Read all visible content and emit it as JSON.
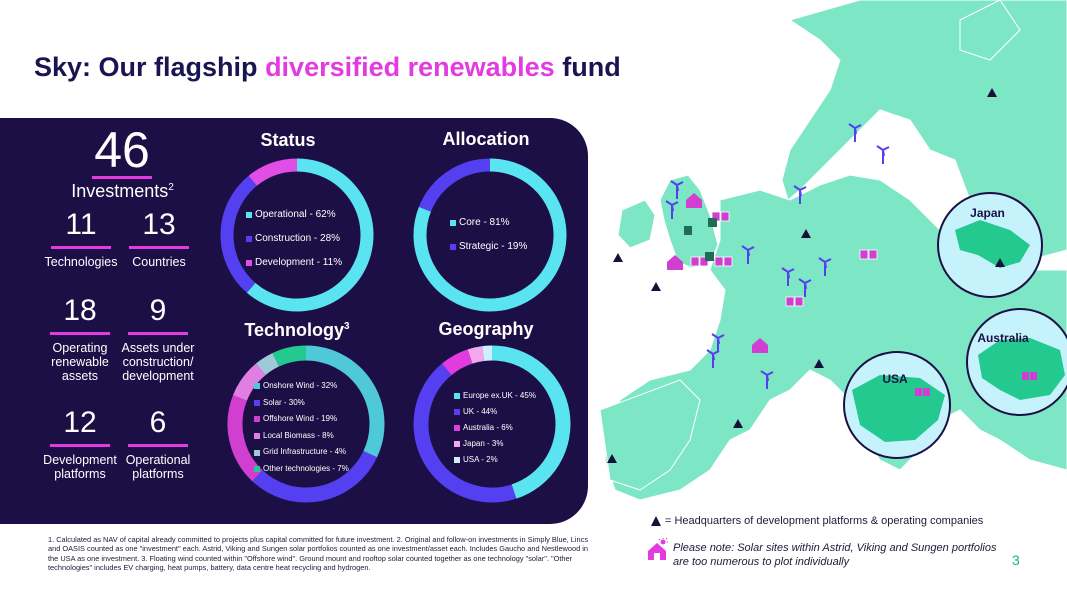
{
  "title": {
    "prefix": "Sky: Our flagship",
    "accent": "diversified renewables",
    "suffix": "fund"
  },
  "stats": {
    "investments": {
      "value": "46",
      "label": "Investments",
      "sup": "2"
    },
    "technologies": {
      "value": "11",
      "label": "Technologies"
    },
    "countries": {
      "value": "13",
      "label": "Countries"
    },
    "operating": {
      "value": "18",
      "label_lines": [
        "Operating",
        "renewable",
        "assets"
      ]
    },
    "under_construction": {
      "value": "9",
      "label_lines": [
        "Assets under",
        "construction/",
        "development"
      ]
    },
    "development_platforms": {
      "value": "12",
      "label_lines": [
        "Development",
        "platforms"
      ]
    },
    "operational_platforms": {
      "value": "6",
      "label_lines": [
        "Operational",
        "platforms"
      ]
    }
  },
  "chart_data": [
    {
      "type": "pie",
      "title": "Status",
      "categories": [
        "Operational",
        "Construction",
        "Development"
      ],
      "values": [
        62,
        28,
        11
      ],
      "labels": [
        "Operational - 62%",
        "Construction - 28%",
        "Development - 11%"
      ],
      "colors": [
        "#5ae3f0",
        "#5440f0",
        "#e14ee6"
      ]
    },
    {
      "type": "pie",
      "title": "Allocation",
      "categories": [
        "Core",
        "Strategic"
      ],
      "values": [
        81,
        19
      ],
      "labels": [
        "Core - 81%",
        "Strategic - 19%"
      ],
      "colors": [
        "#5ae3f0",
        "#5440f0"
      ]
    },
    {
      "type": "pie",
      "title": "Technology",
      "title_sup": "3",
      "categories": [
        "Onshore Wind",
        "Solar",
        "Offshore Wind",
        "Local Biomass",
        "Grid Infrastructure",
        "Other technologies"
      ],
      "values": [
        32,
        30,
        19,
        8,
        4,
        7
      ],
      "labels": [
        "Onshore Wind - 32%",
        "Solar - 30%",
        "Offshore Wind - 19%",
        "Local Biomass - 8%",
        "Grid Infrastructure - 4%",
        "Other technologies - 7%"
      ],
      "colors": [
        "#4fc9d8",
        "#5440f0",
        "#d03fcf",
        "#e07ee3",
        "#9fc9d9",
        "#24c990"
      ]
    },
    {
      "type": "pie",
      "title": "Geography",
      "categories": [
        "Europe ex.UK",
        "UK",
        "Australia",
        "Japan",
        "USA"
      ],
      "values": [
        45,
        44,
        6,
        3,
        2
      ],
      "labels": [
        "Europe ex.UK - 45%",
        "UK - 44%",
        "Australia - 6%",
        "Japan - 3%",
        "USA - 2%"
      ],
      "colors": [
        "#5ae3f0",
        "#5440f0",
        "#e23ce0",
        "#f2a7ef",
        "#cfefff"
      ]
    }
  ],
  "map": {
    "labels": {
      "japan": "Japan",
      "australia": "Australia",
      "usa": "USA"
    },
    "land_color": "#7de6c5",
    "sea_color": "#ffffff"
  },
  "footnote": "1. Calculated as NAV of capital already committed to projects plus capital committed for future investment. 2. Original and follow-on investments in Simply Blue, Lincs and OASIS counted as one \"investment\" each. Astrid, Viking and Sungen solar portfolios counted as one investment/asset each. Includes Gaucho and Nestlewood in the USA as one investment. 3. Floating wind counted within \"Offshore wind\". Ground mount and rooftop solar counted together as one technology \"solar\". \"Other technologies\" includes EV charging, heat pumps, battery, data centre heat recycling and hydrogen.",
  "hq_legend": "= Headquarters of development platforms & operating companies",
  "solar_note": "Please note: Solar sites within Astrid, Viking and Sungen portfolios are too numerous to plot individually",
  "page_number": "3"
}
